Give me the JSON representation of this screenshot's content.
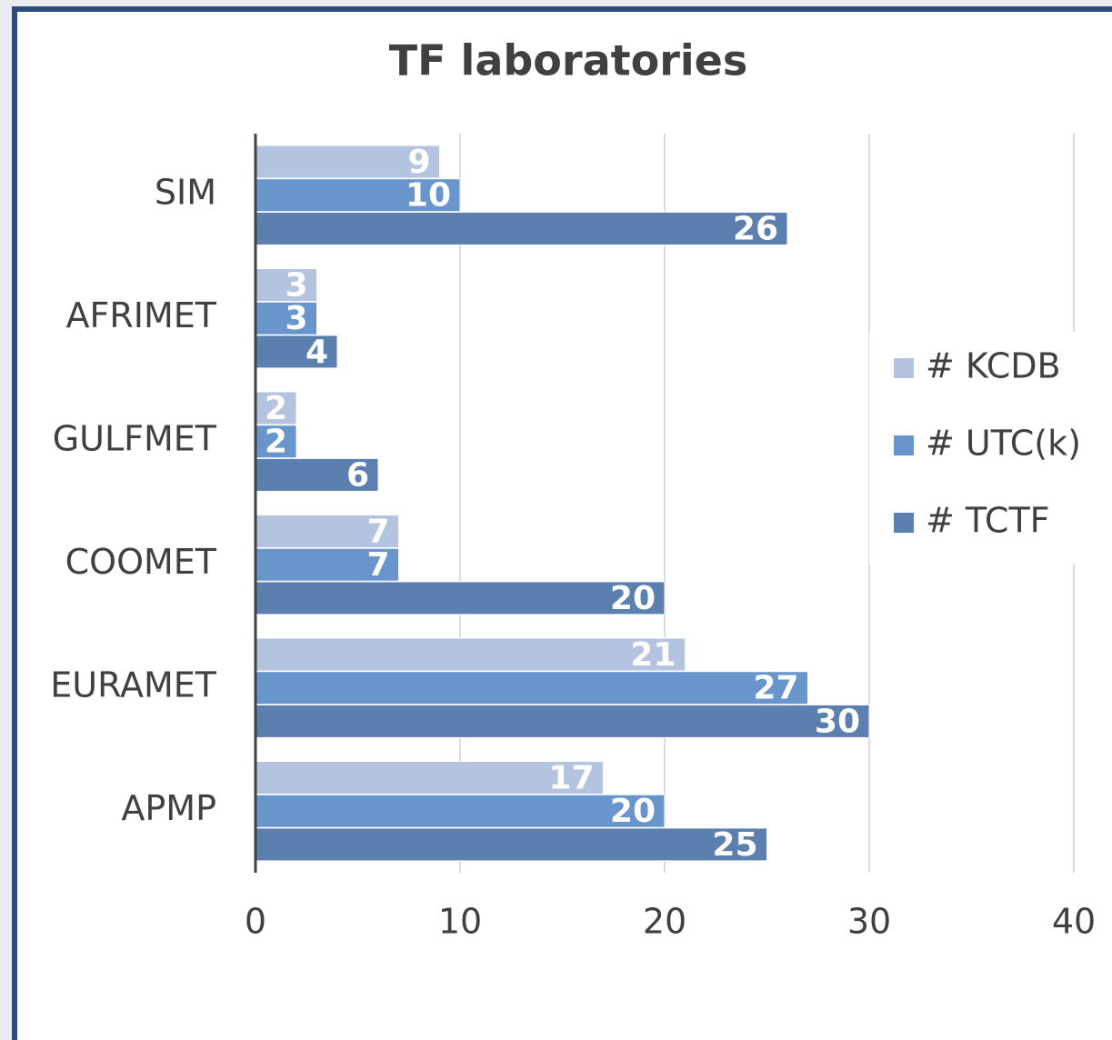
{
  "chart_data": {
    "type": "bar",
    "orientation": "horizontal",
    "title": "TF laboratories",
    "categories": [
      "SIM",
      "AFRIMET",
      "GULFMET",
      "COOMET",
      "EURAMET",
      "APMP"
    ],
    "series": [
      {
        "name": "# KCDB",
        "color": "#b4c4e0",
        "values": [
          9,
          3,
          2,
          7,
          21,
          17
        ]
      },
      {
        "name": "# UTC(k)",
        "color": "#6896cc",
        "values": [
          10,
          3,
          2,
          7,
          27,
          20
        ]
      },
      {
        "name": "# TCTF",
        "color": "#5b7fae",
        "values": [
          26,
          4,
          6,
          20,
          30,
          25
        ]
      }
    ],
    "xlim": [
      0,
      40
    ],
    "xticks": [
      0,
      10,
      20,
      30,
      40
    ],
    "grid": true,
    "legend": "right"
  }
}
